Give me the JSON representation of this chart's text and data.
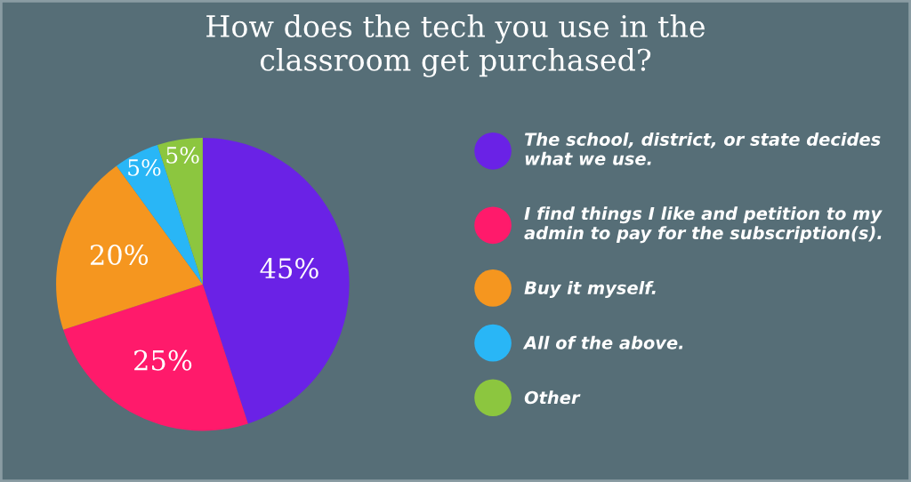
{
  "chart_data": {
    "type": "pie",
    "title": "How does the tech you use in the\nclassroom get purchased?",
    "categories": [
      "The school, district, or state decides\nwhat we use.",
      "I find things I like and petition to my\nadmin to pay for the subscription(s).",
      "Buy it myself.",
      "All of the above.",
      "Other"
    ],
    "values": [
      45,
      25,
      20,
      5,
      5
    ],
    "colors": [
      "#6a22e6",
      "#ff1a6b",
      "#f5961f",
      "#29b6f6",
      "#8cc63f"
    ],
    "value_labels": [
      "45%",
      "25%",
      "20%",
      "5%",
      "5%"
    ],
    "legend": "right"
  }
}
